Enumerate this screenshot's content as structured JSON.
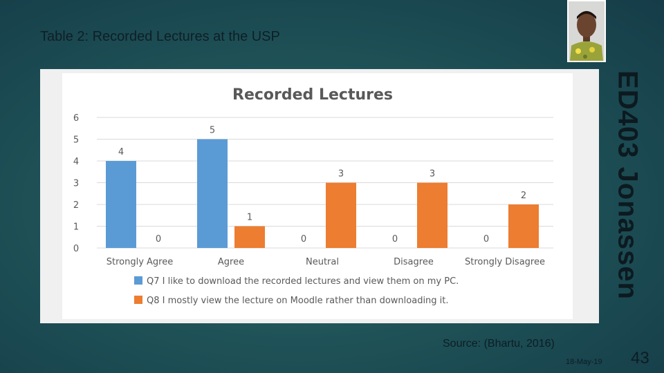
{
  "slide": {
    "title": "Table 2:  Recorded Lectures at the USP",
    "course_label": "ED403  Jonassen",
    "source": "Source: (Bhartu, 2016)",
    "date": "18-May-19",
    "page_number": "43"
  },
  "colors": {
    "q7": "#5b9bd5",
    "q8": "#ed7d31",
    "grid": "#d9d9d9",
    "text": "#595959"
  },
  "chart_data": {
    "type": "bar",
    "title": "Recorded Lectures",
    "categories": [
      "Strongly Agree",
      "Agree",
      "Neutral",
      "Disagree",
      "Strongly Disagree"
    ],
    "series": [
      {
        "name": "Q7 I like to download the recorded lectures and view them on my PC.",
        "values": [
          4,
          5,
          0,
          0,
          0
        ]
      },
      {
        "name": "Q8 I mostly view the lecture on Moodle rather than downloading it.",
        "values": [
          0,
          1,
          3,
          3,
          2
        ]
      }
    ],
    "ylim": [
      0,
      6
    ],
    "yticks": [
      "0",
      "1",
      "2",
      "3",
      "4",
      "5",
      "6"
    ],
    "grid": true,
    "legend": "bottom",
    "data_labels": true
  }
}
